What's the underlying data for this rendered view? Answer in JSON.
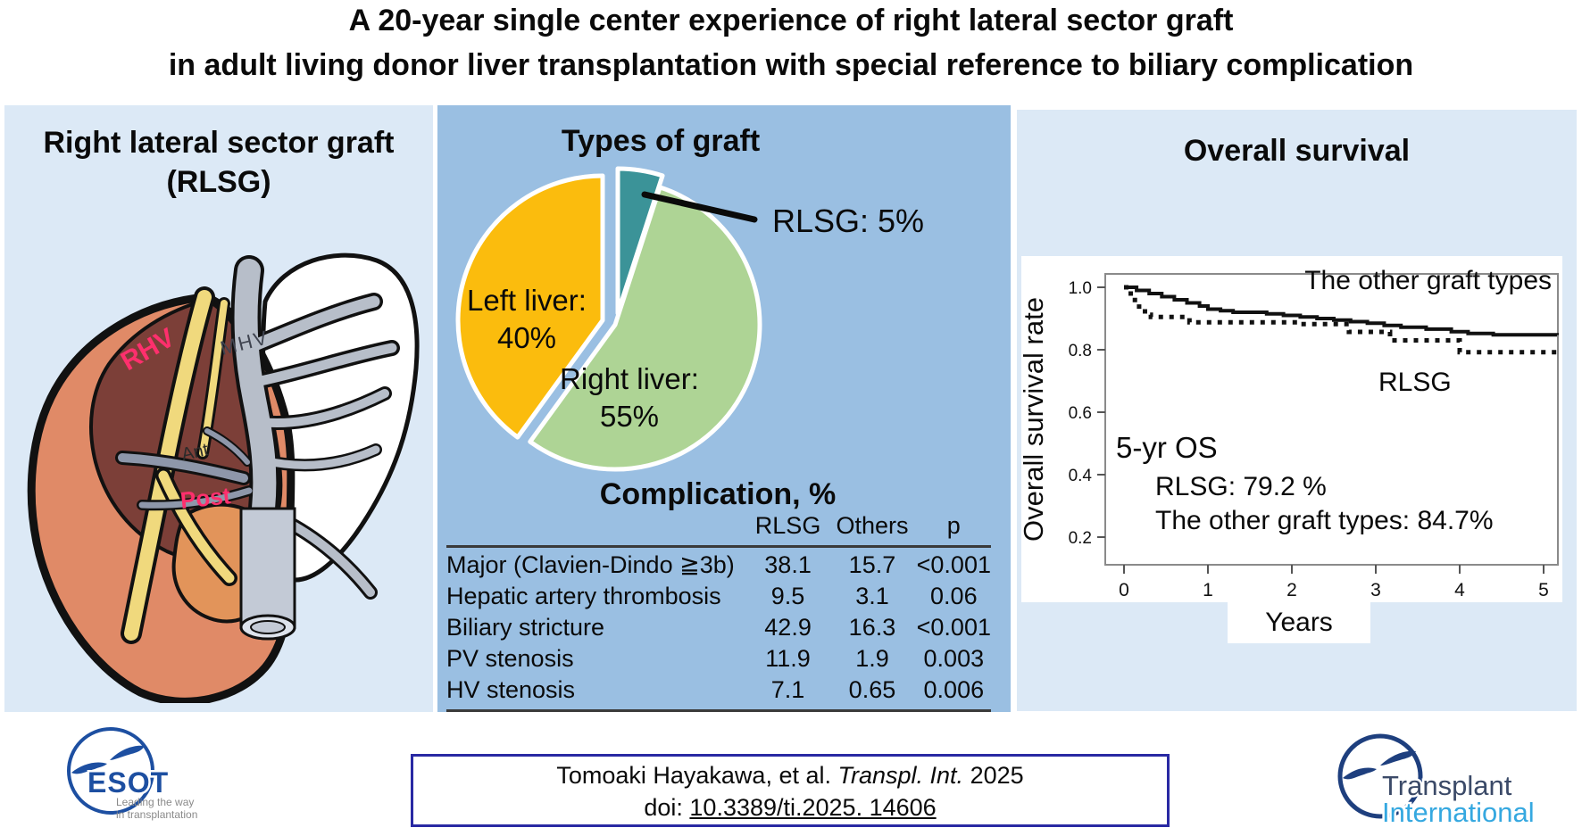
{
  "title": {
    "line1": "A 20-year single center experience of right lateral sector graft",
    "line2": "in adult living donor liver transplantation with special reference to biliary complication"
  },
  "left_panel": {
    "title_line1": "Right lateral sector graft",
    "title_line2": "(RLSG)",
    "liver_labels": {
      "rhv": "RHV",
      "mhv": "MHV",
      "ant": "Ant",
      "post": "Post"
    }
  },
  "middle_panel": {
    "pie_title": "Types of graft",
    "pie_labels": {
      "left_liver_line1": "Left liver:",
      "left_liver_line2": "40%",
      "right_liver_line1": "Right liver:",
      "right_liver_line2": "55%",
      "rlsg_callout": "RLSG: 5%"
    },
    "complication_title": "Complication, %"
  },
  "complication_table": {
    "headers": [
      "",
      "RLSG",
      "Others",
      "p"
    ],
    "rows": [
      {
        "label": "Major (Clavien-Dindo ≧3b)",
        "rlsg": "38.1",
        "others": "15.7",
        "p": "<0.001"
      },
      {
        "label": "Hepatic artery thrombosis",
        "rlsg": "9.5",
        "others": "3.1",
        "p": "0.06"
      },
      {
        "label": "Biliary stricture",
        "rlsg": "42.9",
        "others": "16.3",
        "p": "<0.001"
      },
      {
        "label": "PV stenosis",
        "rlsg": "11.9",
        "others": "1.9",
        "p": "0.003"
      },
      {
        "label": "HV stenosis",
        "rlsg": "7.1",
        "others": "0.65",
        "p": "0.006"
      }
    ]
  },
  "right_panel": {
    "title": "Overall survival",
    "annotations": {
      "series1_label": "The other graft types",
      "series2_label": "RLSG",
      "os_heading": "5-yr OS",
      "os_rlsg": "RLSG: 79.2 %",
      "os_others": "The other graft types: 84.7%"
    }
  },
  "chart_data": [
    {
      "type": "pie",
      "title": "Types of graft",
      "slices": [
        {
          "label": "RLSG",
          "pct": 5,
          "color": "#3b9398"
        },
        {
          "label": "Right liver",
          "pct": 55,
          "color": "#aed495"
        },
        {
          "label": "Left liver",
          "pct": 40,
          "color": "#fbbc0d"
        }
      ],
      "start_angle_deg_from_12": 0,
      "direction": "clockwise",
      "exploded_slices": [
        "RLSG",
        "Left liver"
      ]
    },
    {
      "type": "line",
      "subtype": "kaplan_meier_step",
      "title": "Overall survival",
      "xlabel": "Years",
      "ylabel": "Overall survival rate",
      "xlim": [
        0,
        5.2
      ],
      "ylim_shown": [
        0.1,
        1.05
      ],
      "xticks": [
        0,
        1,
        2,
        3,
        4,
        5
      ],
      "yticks": [
        0.2,
        0.4,
        0.6,
        0.8,
        1.0
      ],
      "grid": false,
      "series": [
        {
          "name": "The other graft types",
          "style": "solid",
          "five_year_os_pct": 84.7,
          "points": [
            [
              0,
              1.0
            ],
            [
              0.15,
              0.99
            ],
            [
              0.3,
              0.98
            ],
            [
              0.45,
              0.97
            ],
            [
              0.6,
              0.96
            ],
            [
              0.75,
              0.95
            ],
            [
              0.9,
              0.94
            ],
            [
              1.0,
              0.93
            ],
            [
              1.15,
              0.925
            ],
            [
              1.3,
              0.92
            ],
            [
              1.7,
              0.915
            ],
            [
              1.9,
              0.91
            ],
            [
              2.1,
              0.905
            ],
            [
              2.3,
              0.9
            ],
            [
              2.5,
              0.895
            ],
            [
              2.7,
              0.89
            ],
            [
              2.9,
              0.885
            ],
            [
              3.1,
              0.878
            ],
            [
              3.3,
              0.872
            ],
            [
              3.6,
              0.866
            ],
            [
              3.9,
              0.858
            ],
            [
              4.1,
              0.852
            ],
            [
              4.4,
              0.848
            ],
            [
              5.2,
              0.847
            ]
          ]
        },
        {
          "name": "RLSG",
          "style": "dotted",
          "five_year_os_pct": 79.2,
          "points": [
            [
              0,
              1.0
            ],
            [
              0.08,
              0.97
            ],
            [
              0.13,
              0.95
            ],
            [
              0.18,
              0.93
            ],
            [
              0.25,
              0.912
            ],
            [
              0.32,
              0.905
            ],
            [
              0.72,
              0.905
            ],
            [
              0.78,
              0.888
            ],
            [
              2.0,
              0.888
            ],
            [
              2.1,
              0.882
            ],
            [
              2.62,
              0.882
            ],
            [
              2.68,
              0.857
            ],
            [
              3.1,
              0.857
            ],
            [
              3.17,
              0.83
            ],
            [
              3.93,
              0.83
            ],
            [
              4.0,
              0.792
            ],
            [
              5.2,
              0.792
            ]
          ]
        }
      ]
    }
  ],
  "footer": {
    "esot": {
      "name": "ESOT",
      "tagline_line1": "Leading the way",
      "tagline_line2": "in transplantation"
    },
    "citation": {
      "authors": "Tomoaki Hayakawa, et al.",
      "journal": "Transpl. Int.",
      "year": "2025",
      "doi_prefix": "doi:",
      "doi": "10.3389/ti.2025. 14606"
    },
    "transplant_international": {
      "line1": "Transplant",
      "line2": "International"
    }
  },
  "colors": {
    "panel_light_blue": "#dce9f6",
    "panel_medium_blue": "#9abfe2",
    "pie_teal": "#3b9398",
    "pie_green": "#aed495",
    "pie_yellow": "#fbbc0d",
    "citation_border_navy": "#2929a3",
    "esot_blue": "#1d4fa1",
    "ti_navy": "#3b4a68",
    "ti_light_blue": "#35a8e0",
    "anatomy_label_pink": "#ff2f6d"
  }
}
